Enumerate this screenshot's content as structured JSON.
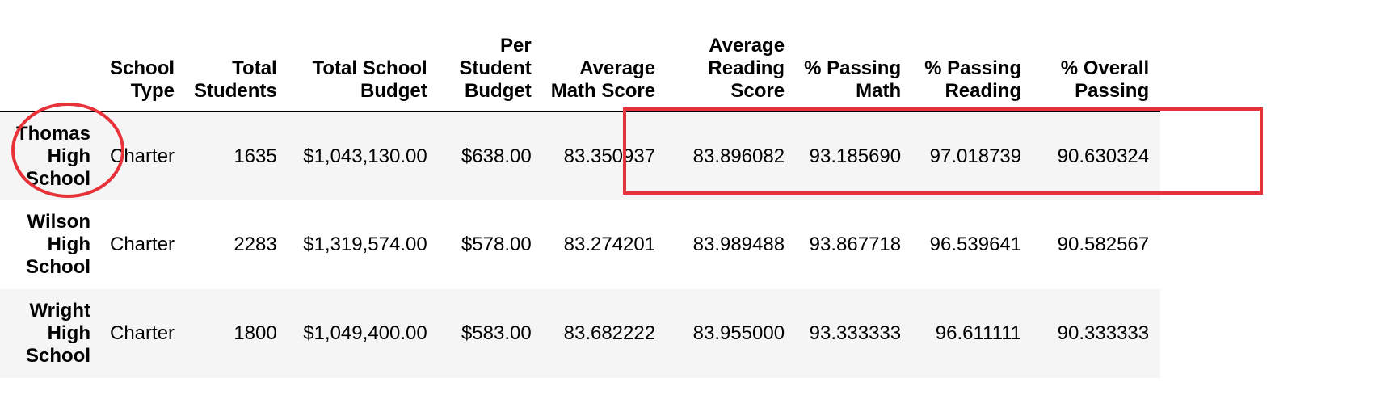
{
  "table": {
    "columns": [
      "",
      "School Type",
      "Total Students",
      "Total School Budget",
      "Per Student Budget",
      "Average Math Score",
      "Average Reading Score",
      "% Passing Math",
      "% Passing Reading",
      "% Overall Passing"
    ],
    "header_lines": [
      [
        ""
      ],
      [
        "School",
        "Type"
      ],
      [
        "Total",
        "Students"
      ],
      [
        "Total School",
        "Budget"
      ],
      [
        "Per",
        "Student",
        "Budget"
      ],
      [
        "Average",
        "Math Score"
      ],
      [
        "Average",
        "Reading",
        "Score"
      ],
      [
        "% Passing",
        "Math"
      ],
      [
        "% Passing",
        "Reading"
      ],
      [
        "% Overall",
        "Passing"
      ]
    ],
    "rows": [
      {
        "school": [
          "Thomas",
          "High",
          "School"
        ],
        "type": "Charter",
        "total_students": "1635",
        "total_budget": "$1,043,130.00",
        "per_student_budget": "$638.00",
        "avg_math": "83.350937",
        "avg_reading": "83.896082",
        "pct_math": "93.185690",
        "pct_reading": "97.018739",
        "pct_overall": "90.630324"
      },
      {
        "school": [
          "Wilson",
          "High",
          "School"
        ],
        "type": "Charter",
        "total_students": "2283",
        "total_budget": "$1,319,574.00",
        "per_student_budget": "$578.00",
        "avg_math": "83.274201",
        "avg_reading": "83.989488",
        "pct_math": "93.867718",
        "pct_reading": "96.539641",
        "pct_overall": "90.582567"
      },
      {
        "school": [
          "Wright",
          "High",
          "School"
        ],
        "type": "Charter",
        "total_students": "1800",
        "total_budget": "$1,049,400.00",
        "per_student_budget": "$583.00",
        "avg_math": "83.682222",
        "avg_reading": "83.955000",
        "pct_math": "93.333333",
        "pct_reading": "96.611111",
        "pct_overall": "90.333333"
      }
    ]
  },
  "colors": {
    "annotation": "#e8323a",
    "row_stripe": "#f5f5f5"
  }
}
